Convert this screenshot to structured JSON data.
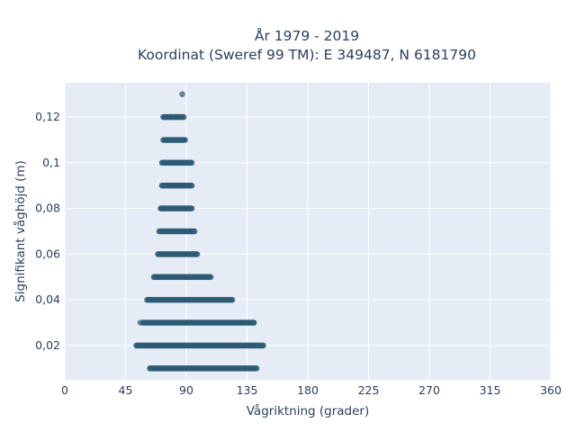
{
  "chart_data": {
    "type": "scatter",
    "title_lines": [
      "År 1979 - 2019",
      "Koordinat (Sweref 99 TM): E 349487, N 6181790"
    ],
    "xlabel": "Vågriktning (grader)",
    "ylabel": "Signifikant våghöjd (m)",
    "xlim": [
      0,
      360
    ],
    "ylim": [
      0.005,
      0.135
    ],
    "x_ticks": [
      {
        "value": 0,
        "label": "0"
      },
      {
        "value": 45,
        "label": "45"
      },
      {
        "value": 90,
        "label": "90"
      },
      {
        "value": 135,
        "label": "135"
      },
      {
        "value": 180,
        "label": "180"
      },
      {
        "value": 225,
        "label": "225"
      },
      {
        "value": 270,
        "label": "270"
      },
      {
        "value": 315,
        "label": "315"
      },
      {
        "value": 360,
        "label": "360"
      }
    ],
    "y_ticks": [
      {
        "value": 0.02,
        "label": "0,02"
      },
      {
        "value": 0.04,
        "label": "0,04"
      },
      {
        "value": 0.06,
        "label": "0,06"
      },
      {
        "value": 0.08,
        "label": "0,08"
      },
      {
        "value": 0.1,
        "label": "0,1"
      },
      {
        "value": 0.12,
        "label": "0,12"
      }
    ],
    "grid": true,
    "legend": "none",
    "colors": {
      "marker": "#2e5a74",
      "plot_bg": "#e5ecf6",
      "grid": "#ffffff",
      "text": "#2a3f5f"
    },
    "bands": [
      {
        "y": 0.01,
        "x_min": 63,
        "x_max": 142
      },
      {
        "y": 0.02,
        "x_min": 53,
        "x_max": 147
      },
      {
        "y": 0.03,
        "x_min": 58,
        "x_max": 140
      },
      {
        "y": 0.04,
        "x_min": 61,
        "x_max": 124
      },
      {
        "y": 0.05,
        "x_min": 66,
        "x_max": 108
      },
      {
        "y": 0.06,
        "x_min": 69,
        "x_max": 98
      },
      {
        "y": 0.07,
        "x_min": 70,
        "x_max": 96
      },
      {
        "y": 0.08,
        "x_min": 71,
        "x_max": 94
      },
      {
        "y": 0.09,
        "x_min": 72,
        "x_max": 94
      },
      {
        "y": 0.1,
        "x_min": 72,
        "x_max": 94
      },
      {
        "y": 0.11,
        "x_min": 73,
        "x_max": 89
      },
      {
        "y": 0.12,
        "x_min": 73,
        "x_max": 88
      }
    ],
    "points": [
      {
        "x": 83,
        "y": 0.12
      },
      {
        "x": 78,
        "y": 0.12
      },
      {
        "x": 87,
        "y": 0.13
      },
      {
        "x": 56,
        "y": 0.03
      },
      {
        "x": 140,
        "y": 0.03
      }
    ]
  }
}
